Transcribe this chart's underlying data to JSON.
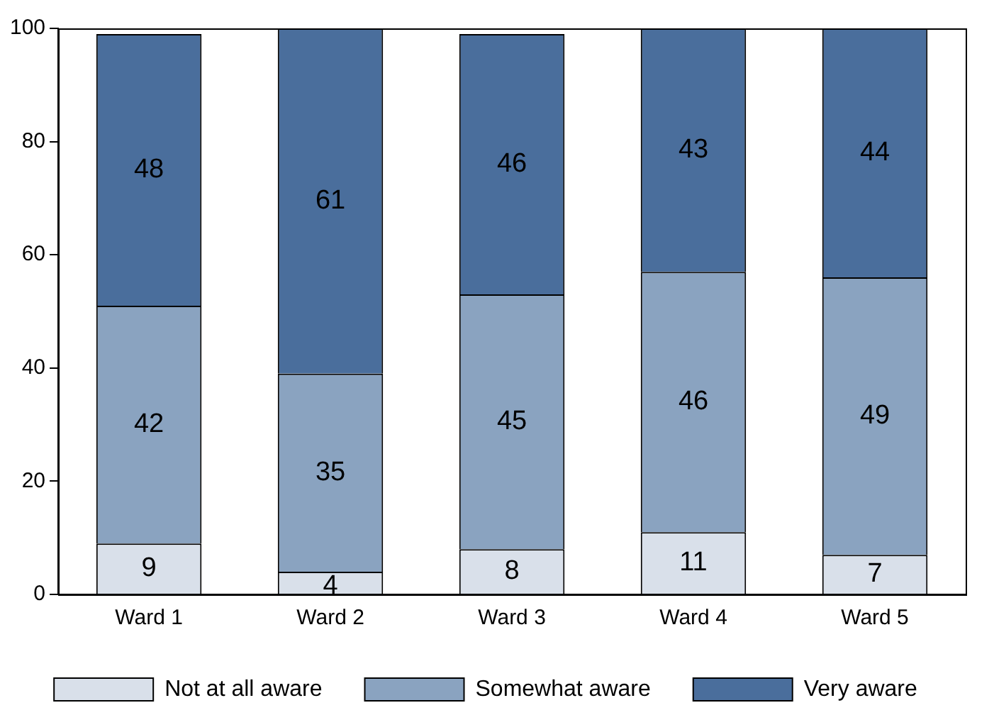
{
  "chart_data": {
    "type": "bar",
    "stacked": true,
    "categories": [
      "Ward 1",
      "Ward 2",
      "Ward 3",
      "Ward 4",
      "Ward 5"
    ],
    "series": [
      {
        "name": "Not at all aware",
        "color": "#d9e0ea",
        "values": [
          9,
          4,
          8,
          11,
          7
        ]
      },
      {
        "name": "Somewhat aware",
        "color": "#8aa3c0",
        "values": [
          42,
          35,
          45,
          46,
          49
        ]
      },
      {
        "name": "Very aware",
        "color": "#4a6e9c",
        "values": [
          48,
          61,
          46,
          43,
          44
        ]
      }
    ],
    "ylim": [
      0,
      100
    ],
    "yticks": [
      0,
      20,
      40,
      60,
      80,
      100
    ],
    "grid": false,
    "legend": "bottom",
    "data_labels": true
  }
}
